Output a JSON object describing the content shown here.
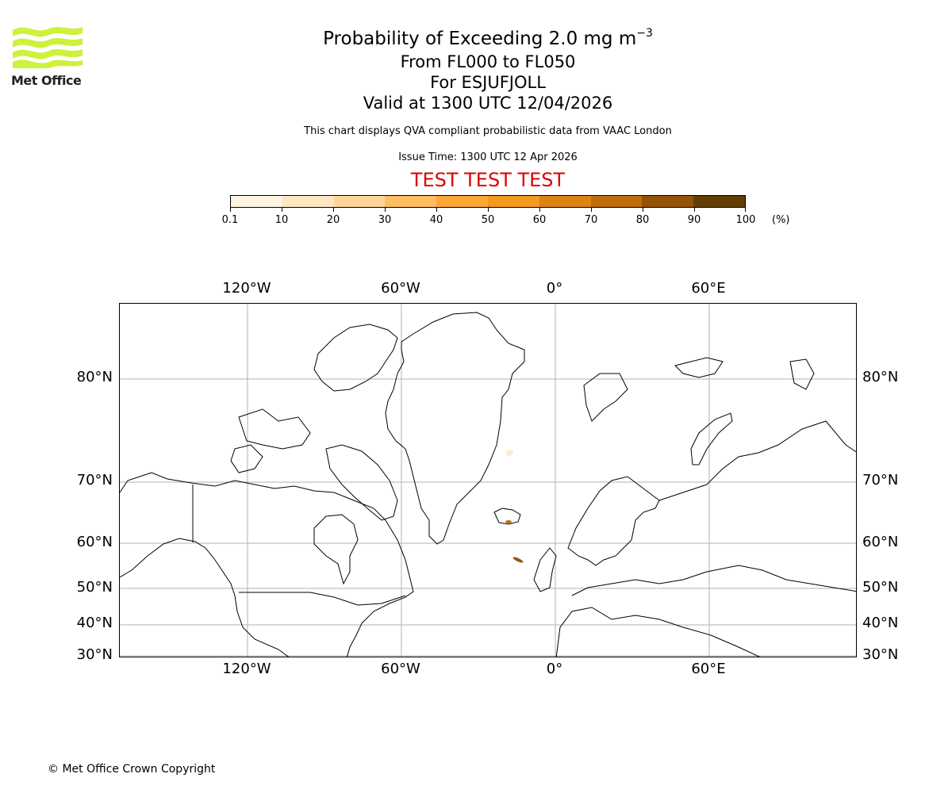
{
  "logo": {
    "text": "Met Office",
    "icon": "met-office-waves-icon",
    "color": "#ccf23a"
  },
  "header": {
    "title_main": "Probability of Exceeding 2.0 mg m",
    "title_superscript": "−3",
    "flight_levels": "From FL000 to FL050",
    "volcano": "For ESJUFJOLL",
    "valid_time": "Valid at 1300 UTC 12/04/2026",
    "description": "This chart displays QVA compliant probabilistic data from VAAC London",
    "issue_time": "Issue Time: 1300 UTC 12 Apr 2026",
    "test_banner": "TEST TEST TEST",
    "test_banner_color": "#dd0000"
  },
  "colorbar": {
    "unit": "(%)",
    "tick_labels": [
      "0.1",
      "10",
      "20",
      "30",
      "40",
      "50",
      "60",
      "70",
      "80",
      "90",
      "100"
    ],
    "colors": [
      "#fff4e3",
      "#fee6c3",
      "#fed596",
      "#fdbe62",
      "#fba838",
      "#f39a1f",
      "#db8414",
      "#bd6e0c",
      "#955308",
      "#643c07"
    ]
  },
  "map": {
    "projection": "Mercator",
    "lon_labels_top": [
      "120°W",
      "60°W",
      "0°",
      "60°E"
    ],
    "lon_labels_bottom": [
      "120°W",
      "60°W",
      "0°",
      "60°E"
    ],
    "lat_labels_left": [
      "80°N",
      "70°N",
      "60°N",
      "50°N",
      "40°N",
      "30°N"
    ],
    "lat_labels_right": [
      "80°N",
      "70°N",
      "60°N",
      "50°N",
      "40°N",
      "30°N"
    ],
    "gridline_color": "#b0b0b0",
    "features": [
      {
        "name": "Ash plume over SE Iceland",
        "probability_band": "50-70%"
      },
      {
        "name": "Ash plume south of Iceland",
        "probability_band": "60-80%"
      },
      {
        "name": "Faint plume east of Greenland",
        "probability_band": "0.1-10%"
      }
    ]
  },
  "chart_data": {
    "type": "heatmap",
    "title": "Probability of Exceeding 2.0 mg m−3 From FL000 to FL050 For ESJUFJOLL Valid at 1300 UTC 12/04/2026",
    "colorbar_range": [
      0.1,
      100
    ],
    "colorbar_bins": [
      0.1,
      10,
      20,
      30,
      40,
      50,
      60,
      70,
      80,
      90,
      100
    ],
    "colorbar_unit": "%",
    "x_ticks": [
      "120°W",
      "60°W",
      "0°",
      "60°E"
    ],
    "y_ticks": [
      "30°N",
      "40°N",
      "50°N",
      "60°N",
      "70°N",
      "80°N"
    ],
    "grid": true,
    "plumes": [
      {
        "region": "SE Iceland (~64°N, 17°W)",
        "approx_probability": 55
      },
      {
        "region": "South of Iceland (~61°N, 15°W)",
        "approx_probability": 70
      },
      {
        "region": "East of Greenland (~72°N, 18°W)",
        "approx_probability": 5
      }
    ]
  },
  "footer": {
    "copyright": "© Met Office Crown Copyright"
  }
}
